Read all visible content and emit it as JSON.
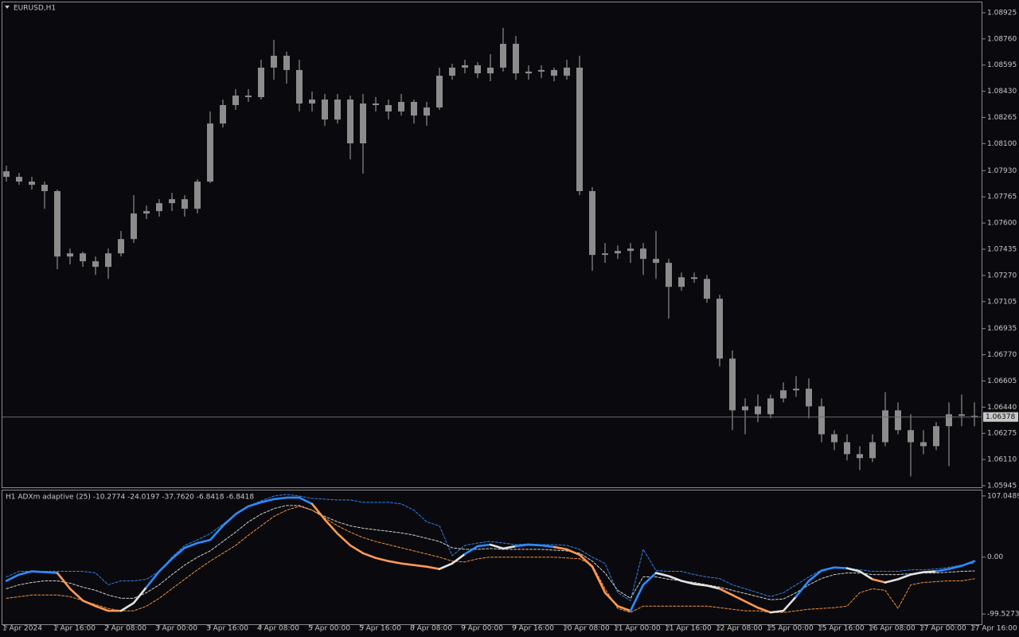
{
  "chart_data": [
    {
      "type": "candlestick",
      "title": "EURUSD,H1",
      "color": "#8c8c8c",
      "open": [
        1.07926,
        1.07891,
        1.07861,
        1.07841,
        1.07801,
        1.07389,
        1.07409,
        1.07359,
        1.07324,
        1.07409,
        1.07499,
        1.0766,
        1.07675,
        1.07725,
        1.0775,
        1.0769,
        1.07861,
        1.08227,
        1.08343,
        1.08403,
        1.08393,
        1.08579,
        1.08654,
        1.08564,
        1.08353,
        1.08378,
        1.08252,
        1.08378,
        1.08102,
        1.08353,
        1.08343,
        1.08303,
        1.08363,
        1.08277,
        1.08328,
        1.08528,
        1.08579,
        1.08594,
        1.08543,
        1.08579,
        1.08729,
        1.08543,
        1.08554,
        1.08564,
        1.08528,
        1.08579,
        1.07801,
        1.07399,
        1.07409,
        1.07424,
        1.07439,
        1.07374,
        1.07349,
        1.07198,
        1.07258,
        1.07248,
        1.07123,
        1.06746,
        1.0642,
        1.06445,
        1.06395,
        1.06495,
        1.06546,
        1.06556,
        1.06445,
        1.06269,
        1.06219,
        1.06144,
        1.06119,
        1.06219,
        1.0642,
        1.06295,
        1.06219,
        1.06194,
        1.0632,
        1.06395,
        1.06385
      ],
      "high": [
        1.07961,
        1.07916,
        1.07891,
        1.07861,
        1.07811,
        1.07439,
        1.07419,
        1.07389,
        1.07439,
        1.0755,
        1.07775,
        1.0771,
        1.0775,
        1.0779,
        1.07775,
        1.07876,
        1.08303,
        1.08378,
        1.08443,
        1.08443,
        1.08629,
        1.08754,
        1.08679,
        1.08629,
        1.08428,
        1.08413,
        1.08413,
        1.08403,
        1.08413,
        1.08393,
        1.08378,
        1.08413,
        1.08378,
        1.08363,
        1.08579,
        1.08604,
        1.08629,
        1.08614,
        1.08664,
        1.0883,
        1.08779,
        1.08594,
        1.08594,
        1.08579,
        1.08629,
        1.08654,
        1.07826,
        1.07474,
        1.07459,
        1.07474,
        1.07474,
        1.0755,
        1.07374,
        1.07288,
        1.07288,
        1.07273,
        1.07148,
        1.06797,
        1.06495,
        1.0652,
        1.0652,
        1.06596,
        1.06636,
        1.06621,
        1.06495,
        1.06295,
        1.06269,
        1.06194,
        1.06269,
        1.06535,
        1.0647,
        1.06395,
        1.06295,
        1.06345,
        1.0647,
        1.0652,
        1.0647
      ],
      "low": [
        1.07861,
        1.07841,
        1.07811,
        1.0769,
        1.07309,
        1.07339,
        1.07324,
        1.07273,
        1.07248,
        1.07389,
        1.07474,
        1.07625,
        1.0764,
        1.07675,
        1.0764,
        1.0766,
        1.07851,
        1.08202,
        1.08313,
        1.08363,
        1.08378,
        1.08503,
        1.08478,
        1.08303,
        1.08303,
        1.08212,
        1.08227,
        1.08001,
        1.07911,
        1.08303,
        1.08252,
        1.08277,
        1.08227,
        1.08212,
        1.08313,
        1.08503,
        1.08543,
        1.08513,
        1.08493,
        1.08554,
        1.08503,
        1.08503,
        1.08513,
        1.08493,
        1.08503,
        1.07775,
        1.07299,
        1.07349,
        1.07374,
        1.07349,
        1.07273,
        1.07248,
        1.06997,
        1.07173,
        1.07223,
        1.07098,
        1.06696,
        1.06295,
        1.06269,
        1.06345,
        1.0637,
        1.0647,
        1.06505,
        1.0637,
        1.06219,
        1.06169,
        1.06104,
        1.06044,
        1.06094,
        1.06194,
        1.06269,
        1.06003,
        1.06144,
        1.06169,
        1.06069,
        1.0632,
        1.0632
      ],
      "close": [
        1.07891,
        1.07861,
        1.07841,
        1.07801,
        1.07389,
        1.07409,
        1.07359,
        1.07324,
        1.07409,
        1.07499,
        1.0766,
        1.07675,
        1.07725,
        1.0775,
        1.0769,
        1.07861,
        1.08227,
        1.08343,
        1.08403,
        1.08393,
        1.08579,
        1.08654,
        1.08564,
        1.08353,
        1.08378,
        1.08252,
        1.08378,
        1.08102,
        1.08353,
        1.08343,
        1.08303,
        1.08363,
        1.08277,
        1.08328,
        1.08528,
        1.08579,
        1.08594,
        1.08543,
        1.08579,
        1.08729,
        1.08543,
        1.08554,
        1.08564,
        1.08528,
        1.08579,
        1.07801,
        1.07399,
        1.07409,
        1.07424,
        1.07439,
        1.07374,
        1.07349,
        1.07198,
        1.07258,
        1.07248,
        1.07123,
        1.06746,
        1.0642,
        1.06445,
        1.06395,
        1.06495,
        1.06546,
        1.06556,
        1.06445,
        1.06269,
        1.06219,
        1.06144,
        1.06119,
        1.06219,
        1.0642,
        1.06295,
        1.06219,
        1.06194,
        1.0632,
        1.06395,
        1.06385,
        1.06378
      ],
      "current_price": 1.06378,
      "ylim": [
        1.05935,
        1.0899
      ],
      "yticks": [
        1.08925,
        {
          "value": 1.0876,
          "label": "1.08760"
        },
        1.08595,
        {
          "value": 1.0843,
          "label": "1.08430"
        },
        1.08265,
        {
          "value": 1.081,
          "label": "1.08100"
        },
        {
          "value": 1.0793,
          "label": "1.07930"
        },
        1.07765,
        {
          "value": 1.076,
          "label": "1.07600"
        },
        1.07435,
        {
          "value": 1.0727,
          "label": "1.07270"
        },
        1.07105,
        1.06935,
        {
          "value": 1.0677,
          "label": "1.06770"
        },
        1.06605,
        {
          "value": 1.0644,
          "label": "1.06440"
        },
        1.06275,
        {
          "value": 1.0611,
          "label": "1.06110"
        },
        1.05945
      ]
    },
    {
      "type": "line",
      "title": "H1 ADXm adaptive (25) -10.2774 -24.0197 -37.7620 -6.8418 -6.8418",
      "categories": [
        "1 Apr 2024",
        null,
        null,
        null,
        "1 Apr 16:00",
        null,
        null,
        null,
        "2 Apr 08:00",
        null,
        null,
        null,
        "3 Apr 00:00",
        null,
        null,
        null,
        "3 Apr 16:00",
        null,
        null,
        null,
        "4 Apr 08:00",
        null,
        null,
        null,
        "5 Apr 00:00",
        null,
        null,
        null,
        "5 Apr 16:00",
        null,
        null,
        null,
        "8 Apr 08:00",
        null,
        null,
        null,
        "9 Apr 00:00",
        null,
        null,
        null,
        "9 Apr 16:00",
        null,
        null,
        null,
        "10 Apr 08:00",
        null,
        null,
        null,
        "11 Apr 00:00",
        null,
        null,
        null,
        "11 Apr 16:00",
        null,
        null,
        null,
        "12 Apr 08:00",
        null,
        null,
        null,
        "15 Apr 00:00",
        null,
        null,
        null,
        "15 Apr 16:00",
        null,
        null,
        null,
        "16 Apr 08:00",
        null,
        null,
        null,
        "17 Apr 00:00",
        null,
        null,
        null,
        "17 Apr 16:00"
      ],
      "series": [
        {
          "colors": {
            "up": "#2e8bff",
            "down": "#ff9955",
            "flat": "#e2e2e2"
          },
          "trend": [
            "up",
            "up",
            "up",
            "up",
            "down",
            "down",
            "down",
            "down",
            "down",
            "flat",
            "flat",
            "up",
            "up",
            "up",
            "up",
            "up",
            "up",
            "up",
            "up",
            "up",
            "up",
            "up",
            "up",
            "up",
            "down",
            "down",
            "down",
            "down",
            "down",
            "down",
            "down",
            "down",
            "down",
            "down",
            "flat",
            "flat",
            "up",
            "up",
            "flat",
            "flat",
            "up",
            "up",
            "up",
            "down",
            "down",
            "down",
            "down",
            "down",
            "down",
            "up",
            "up",
            "flat",
            "flat",
            "flat",
            "flat",
            "flat",
            "down",
            "down",
            "down",
            "down",
            "flat",
            "flat",
            "up",
            "up",
            "up",
            "up",
            "flat",
            "flat",
            "down",
            "flat",
            "flat",
            "flat",
            "flat",
            "up",
            "up",
            "up"
          ],
          "values": [
            -41.4,
            -30.4,
            -24.8,
            -26.2,
            -27.6,
            -55.2,
            -75.9,
            -85.6,
            -93.8,
            -93.8,
            -80.0,
            -52.4,
            -24.8,
            -2.8,
            16.4,
            24.7,
            30.1,
            54.8,
            75.3,
            89.0,
            95.9,
            101.4,
            104.1,
            104.1,
            93.2,
            65.8,
            41.1,
            20.6,
            6.9,
            -1.4,
            -6.9,
            -11.0,
            -13.8,
            -16.6,
            -20.7,
            -11.0,
            5.5,
            19.2,
            21.9,
            15.1,
            19.2,
            21.9,
            20.6,
            17.8,
            13.7,
            4.1,
            -16.6,
            -62.1,
            -85.6,
            -93.8,
            -48.3,
            -27.6,
            -33.1,
            -41.4,
            -46.9,
            -49.7,
            -55.2,
            -66.2,
            -77.3,
            -88.3,
            -96.6,
            -93.8,
            -69.0,
            -41.4,
            -23.5,
            -17.9,
            -19.3,
            -24.8,
            -38.6,
            -44.2,
            -38.6,
            -30.4,
            -26.2,
            -24.8,
            -20.7,
            -15.2,
            -6.8418
          ]
        },
        {
          "color": "#2f7fe6",
          "dashed": true,
          "values": [
            -34.5,
            -24.8,
            -24.8,
            -24.8,
            -24.8,
            -24.8,
            -24.8,
            -27.6,
            -48.3,
            -41.4,
            -41.4,
            -38.6,
            -24.8,
            0,
            20.6,
            30.1,
            41.1,
            57.5,
            75.3,
            89.0,
            98.6,
            106.8,
            109.6,
            106.8,
            102.8,
            101.4,
            100.0,
            100.0,
            95.9,
            95.9,
            95.9,
            93.2,
            82.2,
            61.7,
            54.8,
            2.7,
            20.6,
            24.7,
            27.4,
            24.7,
            21.9,
            23.3,
            21.9,
            21.9,
            20.6,
            13.7,
            0,
            -11.0,
            -62.1,
            -75.9,
            13.7,
            -23.5,
            -24.8,
            -24.8,
            -30.4,
            -34.5,
            -37.3,
            -48.3,
            -55.2,
            -62.1,
            -69.0,
            -62.1,
            -48.3,
            -34.5,
            -22.1,
            -19.3,
            -19.3,
            -22.1,
            -24.8,
            -24.8,
            -24.8,
            -22.1,
            -22.1,
            -20.7,
            -17.9,
            -13.8,
            -10.2774
          ]
        },
        {
          "color": "#cfcfcf",
          "dashed": true,
          "values": [
            -55.2,
            -48.3,
            -44.2,
            -41.4,
            -41.4,
            -45.5,
            -52.4,
            -58.0,
            -66.2,
            -71.8,
            -71.8,
            -62.1,
            -48.3,
            -30.4,
            -13.8,
            0,
            11.0,
            27.4,
            43.8,
            61.7,
            75.3,
            84.9,
            90.4,
            90.4,
            82.2,
            71.2,
            61.7,
            54.8,
            50.7,
            47.9,
            45.2,
            42.5,
            38.4,
            32.9,
            27.4,
            16.4,
            13.7,
            13.7,
            15.1,
            13.7,
            13.7,
            13.7,
            13.7,
            12.3,
            11.0,
            6.9,
            -6.9,
            -27.6,
            -58.0,
            -71.8,
            -34.5,
            -34.5,
            -38.6,
            -41.4,
            -44.2,
            -48.3,
            -52.4,
            -58.0,
            -63.5,
            -69.0,
            -74.5,
            -73.1,
            -62.1,
            -48.3,
            -37.3,
            -30.4,
            -27.6,
            -27.6,
            -30.4,
            -30.4,
            -30.4,
            -29.0,
            -27.6,
            -27.6,
            -26.2,
            -24.8,
            -24.0197
          ]
        },
        {
          "color": "#f0903c",
          "dashed": true,
          "values": [
            -71.8,
            -69.0,
            -66.2,
            -66.2,
            -66.2,
            -69.0,
            -75.9,
            -82.8,
            -89.7,
            -93.8,
            -93.8,
            -85.6,
            -71.8,
            -55.2,
            -38.6,
            -22.1,
            -6.9,
            6.9,
            20.6,
            38.4,
            54.8,
            71.2,
            82.2,
            89.0,
            82.2,
            68.5,
            54.8,
            43.8,
            34.2,
            27.4,
            21.9,
            16.4,
            11.0,
            5.5,
            0,
            -6.9,
            -8.3,
            -2.8,
            0,
            0,
            0,
            0,
            0,
            0,
            -1.4,
            -2.8,
            -13.8,
            -55.2,
            -89.7,
            -96.6,
            -85.6,
            -85.6,
            -85.6,
            -85.6,
            -85.6,
            -85.6,
            -88.3,
            -91.1,
            -93.8,
            -93.8,
            -96.6,
            -96.6,
            -93.8,
            -91.1,
            -89.7,
            -88.3,
            -85.6,
            -62.1,
            -55.2,
            -58.0,
            -89.7,
            -48.3,
            -44.2,
            -42.8,
            -41.4,
            -41.4,
            -37.762
          ]
        }
      ],
      "ylim": [
        -117.3,
        116.6
      ],
      "yticks": [
        107.0489,
        {
          "value": 0,
          "label": "0.00"
        },
        -99.5273
      ]
    }
  ]
}
